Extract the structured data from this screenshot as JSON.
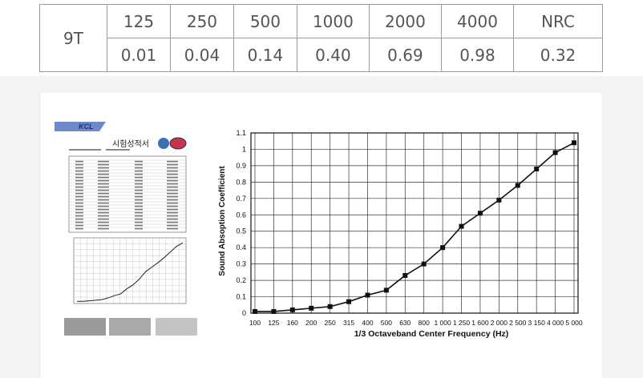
{
  "table": {
    "model": "9T",
    "frequencies": [
      "125",
      "250",
      "500",
      "1000",
      "2000",
      "4000"
    ],
    "nrc_label": "NRC",
    "values": [
      "0.01",
      "0.04",
      "0.14",
      "0.40",
      "0.69",
      "0.98"
    ],
    "nrc_value": "0.32"
  },
  "report": {
    "logo_text": "KCL",
    "title": "시험성적서"
  },
  "chart_data": {
    "type": "line",
    "xlabel": "1/3 Octaveband Center Frequency (Hz)",
    "ylabel": "Sound Absoption Coefficient",
    "categories": [
      "100",
      "125",
      "160",
      "200",
      "250",
      "315",
      "400",
      "500",
      "630",
      "800",
      "1 000",
      "1 250",
      "1 600",
      "2 000",
      "2 500",
      "3 150",
      "4 000",
      "5 000"
    ],
    "series": [
      {
        "values": [
          0.01,
          0.01,
          0.02,
          0.03,
          0.04,
          0.07,
          0.11,
          0.14,
          0.23,
          0.3,
          0.4,
          0.53,
          0.61,
          0.69,
          0.78,
          0.88,
          0.98,
          1.04
        ]
      }
    ],
    "ylim": [
      0,
      1.1
    ],
    "yticks": [
      "0",
      "0.1",
      "0.2",
      "0.3",
      "0.4",
      "0.5",
      "0.6",
      "0.7",
      "0.8",
      "0.9",
      "1",
      "1.1"
    ],
    "grid": true,
    "line_color": "#111111"
  }
}
